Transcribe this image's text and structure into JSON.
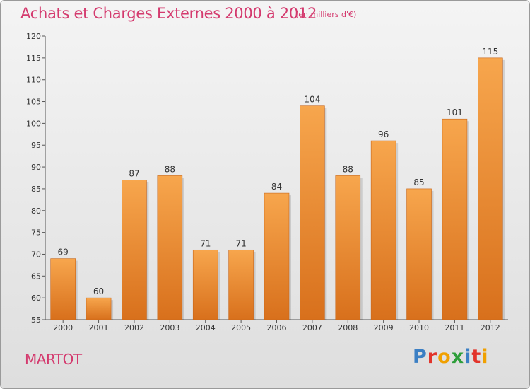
{
  "title": "Achats et Charges Externes 2000 à 2012",
  "subtitle": "(en milliers d'€)",
  "place": "MARTOT",
  "logo": {
    "letters": [
      "P",
      "r",
      "o",
      "x",
      "i",
      "t",
      "i"
    ],
    "colors": [
      "#3b7fc4",
      "#e2342b",
      "#f0a000",
      "#2e9e3a",
      "#3b7fc4",
      "#e2342b",
      "#f0a000"
    ]
  },
  "colors": {
    "bar_top": "#f7a64d",
    "bar_bottom": "#d8701c",
    "title": "#d43a6e"
  },
  "chart_data": {
    "type": "bar",
    "categories": [
      "2000",
      "2001",
      "2002",
      "2003",
      "2004",
      "2005",
      "2006",
      "2007",
      "2008",
      "2009",
      "2010",
      "2011",
      "2012"
    ],
    "values": [
      69,
      60,
      87,
      88,
      71,
      71,
      84,
      104,
      88,
      96,
      85,
      101,
      115
    ],
    "title": "Achats et Charges Externes 2000 à 2012",
    "xlabel": "",
    "ylabel": "",
    "ylim": [
      55,
      120
    ],
    "yticks": [
      55,
      60,
      65,
      70,
      75,
      80,
      85,
      90,
      95,
      100,
      105,
      110,
      115,
      120
    ],
    "grid": false,
    "legend": "none"
  }
}
